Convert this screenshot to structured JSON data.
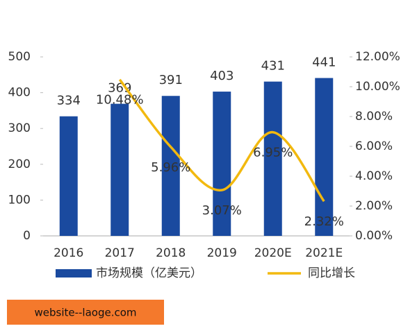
{
  "chart_data": {
    "type": "bar",
    "categories": [
      "2016",
      "2017",
      "2018",
      "2019",
      "2020E",
      "2021E"
    ],
    "series": [
      {
        "name": "市场规模（亿美元）",
        "type": "bar",
        "color": "#1a4a9f",
        "values": [
          334,
          369,
          391,
          403,
          431,
          441
        ]
      },
      {
        "name": "同比增长",
        "type": "line",
        "axis": "y2",
        "color": "#f2b90f",
        "values": [
          null,
          10.48,
          5.96,
          3.07,
          6.95,
          2.32
        ],
        "value_labels": [
          null,
          "10.48%",
          "5.96%",
          "3.07%",
          "6.95%",
          "2.32%"
        ]
      }
    ],
    "ylim": [
      0,
      500
    ],
    "yticks": [
      0,
      100,
      200,
      300,
      400,
      500
    ],
    "y2lim": [
      0,
      12
    ],
    "y2ticks": [
      {
        "value": 0,
        "label": "0.00%"
      },
      {
        "value": 2,
        "label": "2.00%"
      },
      {
        "value": 4,
        "label": "4.00%"
      },
      {
        "value": 6,
        "label": "6.00%"
      },
      {
        "value": 8,
        "label": "8.00%"
      },
      {
        "value": 10,
        "label": "10.00%"
      },
      {
        "value": 12,
        "label": "12.00%"
      }
    ],
    "annotations": [
      "website--laoge.com"
    ]
  }
}
